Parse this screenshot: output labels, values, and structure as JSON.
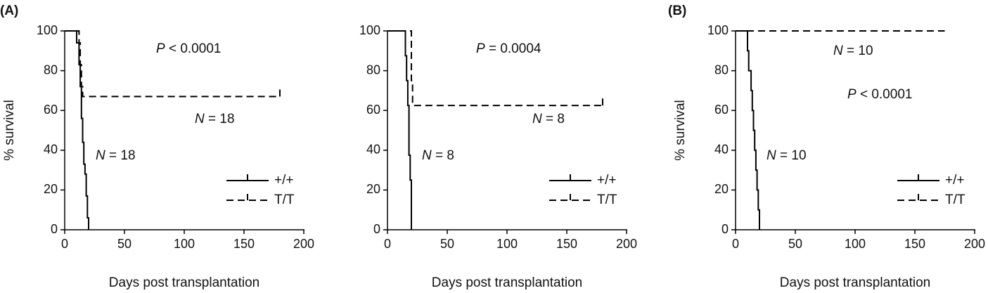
{
  "chart_data": [
    {
      "type": "step",
      "panel_label": "(A)",
      "ylabel": "% survival",
      "xlabel": "Days post transplantation",
      "xlim": [
        0,
        200
      ],
      "xticks": [
        0,
        50,
        100,
        150,
        200
      ],
      "ylim": [
        0,
        100
      ],
      "yticks": [
        0,
        20,
        40,
        60,
        80,
        100
      ],
      "legend": "lower right",
      "annotations": [
        {
          "italic": "P",
          "text": " < 0.0001"
        },
        {
          "italic": "N",
          "text": " = 18"
        },
        {
          "italic": "N",
          "text": " = 18"
        }
      ],
      "series": [
        {
          "name": "+/+",
          "color": "#000000",
          "dash": false,
          "x": [
            0,
            10,
            12,
            13,
            14,
            15,
            16,
            17,
            18,
            19,
            20
          ],
          "values": [
            100,
            94,
            83,
            72,
            56,
            44,
            33,
            28,
            17,
            6,
            0
          ]
        },
        {
          "name": "T/T",
          "color": "#000000",
          "dash": true,
          "x": [
            0,
            12,
            13,
            14,
            15,
            180
          ],
          "values": [
            100,
            94,
            83,
            72,
            67,
            67
          ],
          "censor_x": [
            180
          ]
        }
      ]
    },
    {
      "type": "step",
      "xlabel": "Days post transplantation",
      "xlim": [
        0,
        200
      ],
      "xticks": [
        0,
        50,
        100,
        150,
        200
      ],
      "ylim": [
        0,
        100
      ],
      "yticks": [
        0,
        20,
        40,
        60,
        80,
        100
      ],
      "legend": "lower right",
      "annotations": [
        {
          "italic": "P",
          "text": " = 0.0004"
        },
        {
          "italic": "N",
          "text": " = 8"
        },
        {
          "italic": "N",
          "text": " = 8"
        }
      ],
      "series": [
        {
          "name": "+/+",
          "color": "#000000",
          "dash": false,
          "x": [
            0,
            15,
            16,
            17,
            18,
            19,
            20
          ],
          "values": [
            100,
            87.5,
            75,
            62.5,
            37.5,
            25,
            0
          ]
        },
        {
          "name": "T/T",
          "color": "#000000",
          "dash": true,
          "x": [
            0,
            20,
            21,
            180
          ],
          "values": [
            100,
            75,
            62.5,
            62.5
          ],
          "censor_x": [
            180
          ]
        }
      ]
    },
    {
      "type": "step",
      "panel_label": "(B)",
      "ylabel": "% survival",
      "xlabel": "Days post transplantation",
      "xlim": [
        0,
        200
      ],
      "xticks": [
        0,
        50,
        100,
        150,
        200
      ],
      "ylim": [
        0,
        100
      ],
      "yticks": [
        0,
        20,
        40,
        60,
        80,
        100
      ],
      "legend": "lower right",
      "annotations": [
        {
          "italic": "N",
          "text": " = 10"
        },
        {
          "italic": "P",
          "text": " < 0.0001"
        },
        {
          "italic": "N",
          "text": " = 10"
        }
      ],
      "series": [
        {
          "name": "+/+",
          "color": "#000000",
          "dash": false,
          "x": [
            0,
            10,
            11,
            13,
            14,
            15,
            16,
            17,
            18,
            19,
            20
          ],
          "values": [
            100,
            90,
            80,
            70,
            60,
            50,
            40,
            30,
            20,
            10,
            0
          ]
        },
        {
          "name": "T/T",
          "color": "#000000",
          "dash": true,
          "x": [
            0,
            175
          ],
          "values": [
            100,
            100
          ]
        }
      ]
    }
  ]
}
